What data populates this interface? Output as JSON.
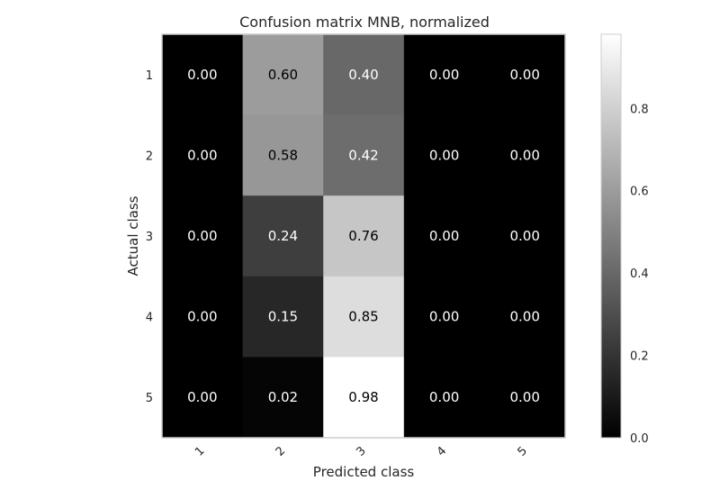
{
  "chart_data": {
    "type": "heatmap",
    "title": "Confusion matrix MNB, normalized",
    "xlabel": "Predicted class",
    "ylabel": "Actual class",
    "x_categories": [
      "1",
      "2",
      "3",
      "4",
      "5"
    ],
    "y_categories": [
      "1",
      "2",
      "3",
      "4",
      "5"
    ],
    "values": [
      [
        0.0,
        0.6,
        0.4,
        0.0,
        0.0
      ],
      [
        0.0,
        0.58,
        0.42,
        0.0,
        0.0
      ],
      [
        0.0,
        0.24,
        0.76,
        0.0,
        0.0
      ],
      [
        0.0,
        0.15,
        0.85,
        0.0,
        0.0
      ],
      [
        0.0,
        0.02,
        0.98,
        0.0,
        0.0
      ]
    ],
    "cell_labels": [
      [
        "0.00",
        "0.60",
        "0.40",
        "0.00",
        "0.00"
      ],
      [
        "0.00",
        "0.58",
        "0.42",
        "0.00",
        "0.00"
      ],
      [
        "0.00",
        "0.24",
        "0.76",
        "0.00",
        "0.00"
      ],
      [
        "0.00",
        "0.15",
        "0.85",
        "0.00",
        "0.00"
      ],
      [
        "0.00",
        "0.02",
        "0.98",
        "0.00",
        "0.00"
      ]
    ],
    "colormap": "gray",
    "vmin": 0.0,
    "vmax": 0.98,
    "colorbar_ticks": [
      0.0,
      0.2,
      0.4,
      0.6,
      0.8
    ],
    "colorbar_tick_labels": [
      "0.0",
      "0.2",
      "0.4",
      "0.6",
      "0.8"
    ],
    "x_tick_rotation": 45,
    "grid": false
  }
}
